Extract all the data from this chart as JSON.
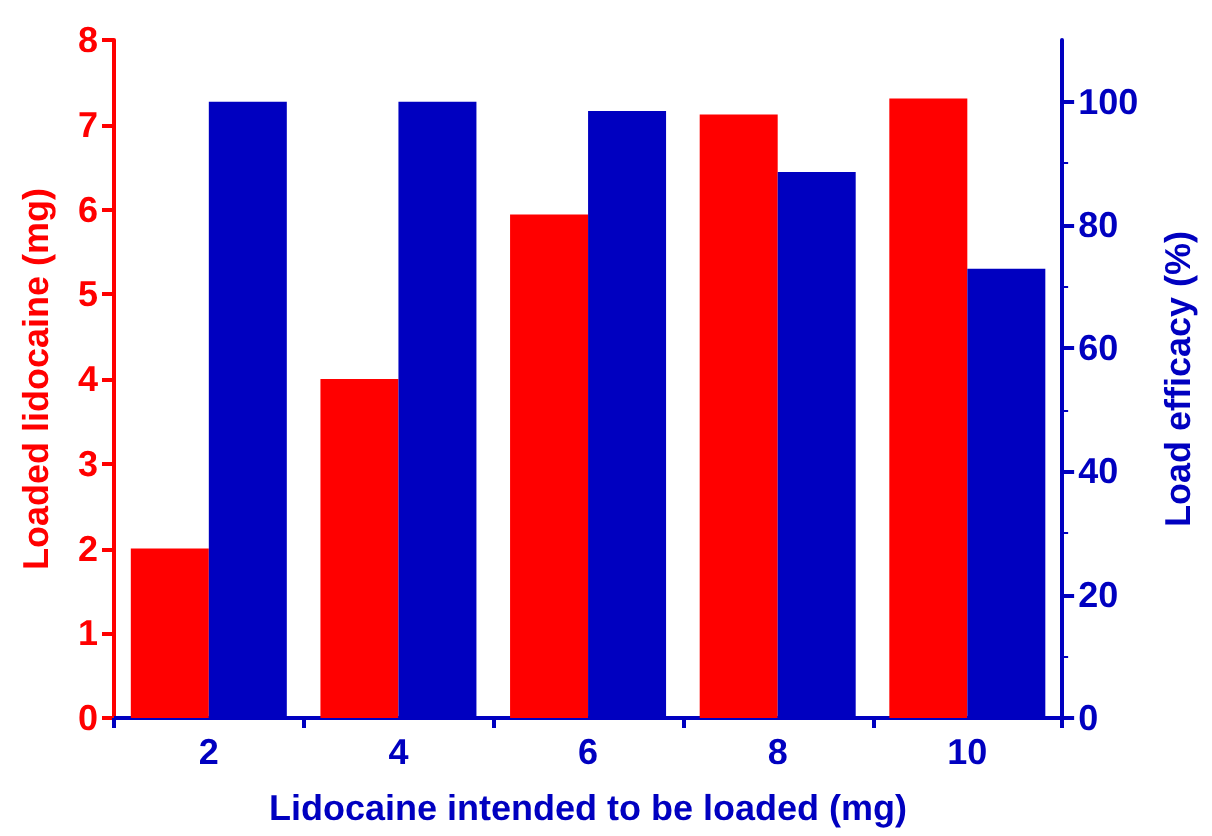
{
  "chart_data": {
    "type": "bar",
    "xlabel": "Lidocaine intended to be loaded (mg)",
    "ylabel": "Loaded lidocaine (mg)",
    "y2label": "Load efficacy (%)",
    "categories": [
      "2",
      "4",
      "6",
      "8",
      "10"
    ],
    "series": [
      {
        "color": "#ff0000",
        "values": [
          2.0,
          4.0,
          5.94,
          7.12,
          7.31
        ]
      },
      {
        "color": "#0000c0",
        "axis": "y2",
        "values": [
          100,
          100,
          98.5,
          88.6,
          72.9
        ]
      }
    ],
    "ylim": [
      0,
      8
    ],
    "yticks": [
      0,
      1,
      2,
      3,
      4,
      5,
      6,
      7,
      8
    ],
    "y2lim": [
      0,
      110
    ],
    "y2ticks": [
      0,
      20,
      40,
      60,
      80,
      100
    ]
  }
}
